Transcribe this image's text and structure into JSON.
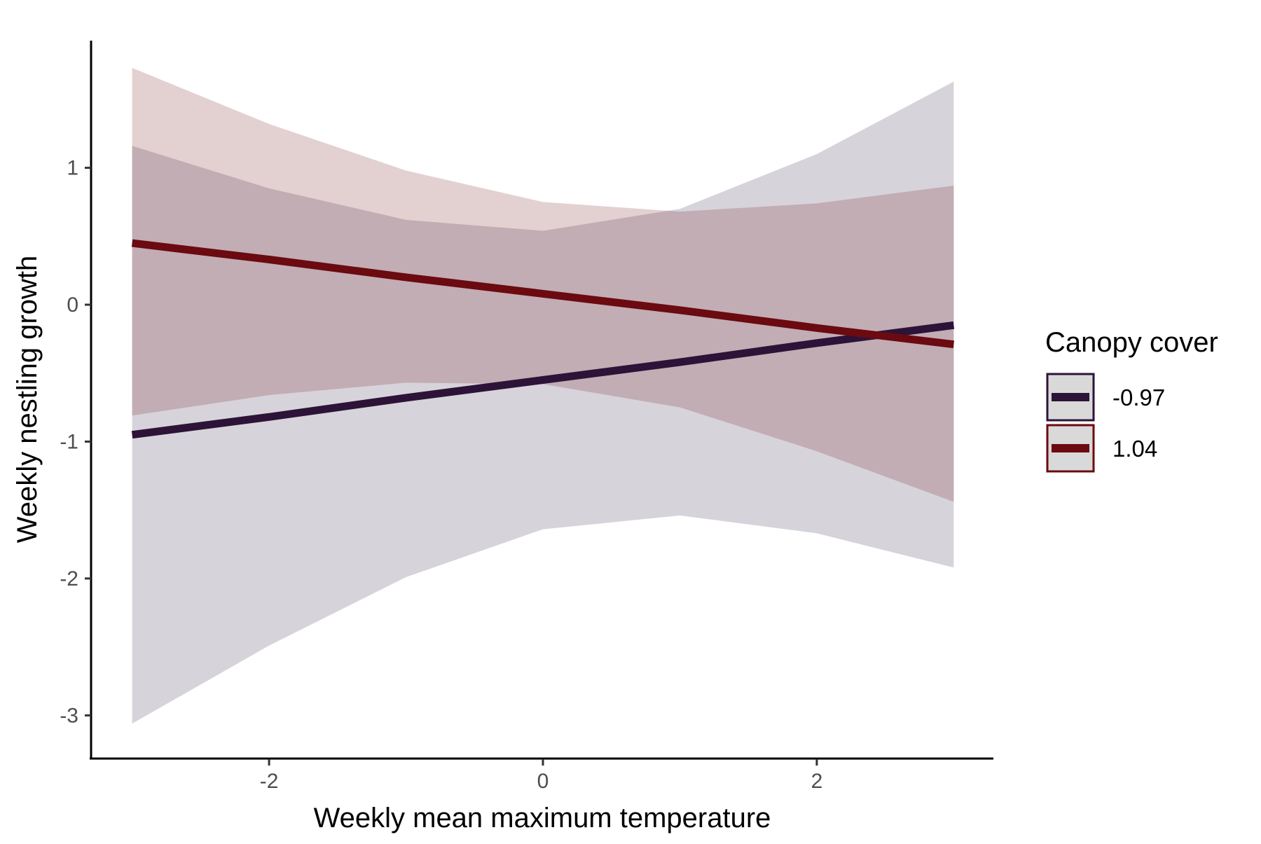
{
  "chart_data": {
    "type": "line",
    "title": "",
    "xlabel": "Weekly mean maximum temperature",
    "ylabel": "Weekly nestling growth",
    "xlim": [
      -3.3,
      3.3
    ],
    "ylim": [
      -3.3,
      1.97
    ],
    "x_ticks": [
      -2,
      0,
      2
    ],
    "x_tick_labels": [
      "-2",
      "0",
      "2"
    ],
    "y_ticks": [
      -3,
      -2,
      -1,
      0,
      1
    ],
    "y_tick_labels": [
      "-3",
      "-2",
      "-1",
      "0",
      "1"
    ],
    "grid": false,
    "legend": {
      "title": "Canopy cover",
      "placement": "right"
    },
    "x": [
      -3,
      -2,
      -1,
      0,
      1,
      2,
      3
    ],
    "series": [
      {
        "name": "-0.97",
        "color": "#2d1338",
        "band_color": "#d6d1da",
        "values": [
          -0.95,
          -0.82,
          -0.68,
          -0.55,
          -0.42,
          -0.28,
          -0.15
        ],
        "lower": [
          -3.06,
          -2.49,
          -1.99,
          -1.64,
          -1.54,
          -1.67,
          -1.92
        ],
        "upper": [
          1.16,
          0.85,
          0.62,
          0.54,
          0.7,
          1.1,
          1.63
        ]
      },
      {
        "name": "1.04",
        "color": "#6b0a10",
        "band_color": "#e4cbcd",
        "values": [
          0.45,
          0.33,
          0.2,
          0.08,
          -0.04,
          -0.17,
          -0.29
        ],
        "lower": [
          -0.81,
          -0.66,
          -0.57,
          -0.58,
          -0.75,
          -1.07,
          -1.44
        ],
        "upper": [
          1.73,
          1.32,
          0.98,
          0.75,
          0.68,
          0.74,
          0.87
        ]
      }
    ],
    "overlap_color": "#c4a7ae"
  }
}
